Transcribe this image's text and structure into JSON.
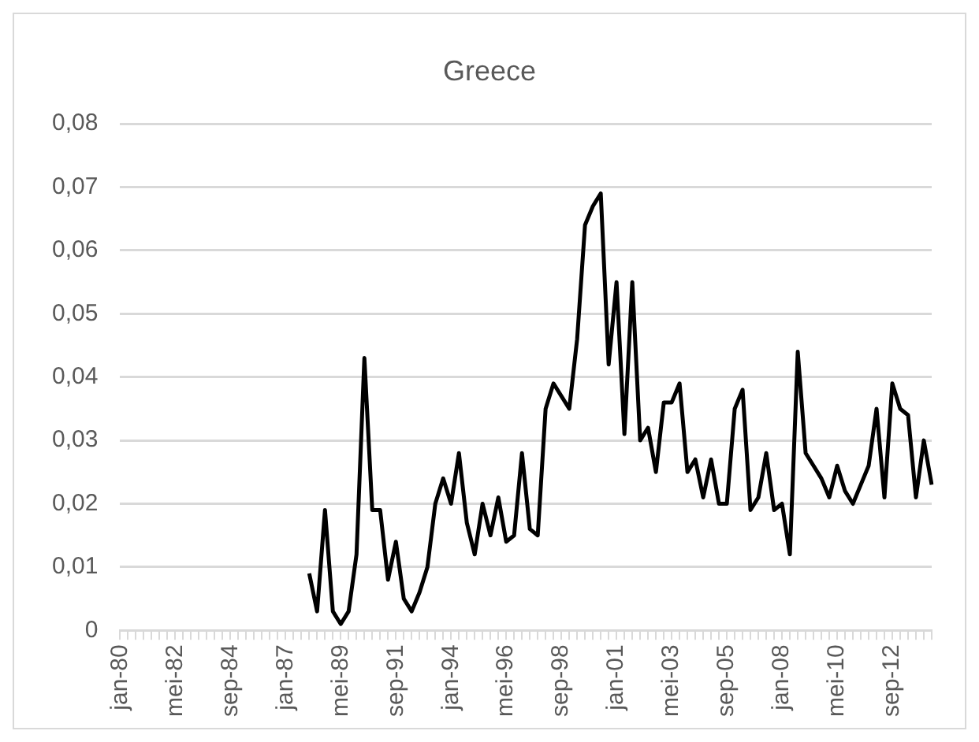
{
  "chart_data": {
    "type": "line",
    "title": "Greece",
    "categories": [
      "jan-80",
      null,
      null,
      null,
      null,
      null,
      null,
      "mei-82",
      null,
      null,
      null,
      null,
      null,
      null,
      "sep-84",
      null,
      null,
      null,
      null,
      null,
      null,
      "jan-87",
      null,
      null,
      null,
      null,
      null,
      null,
      "mei-89",
      null,
      null,
      null,
      null,
      null,
      null,
      "sep-91",
      null,
      null,
      null,
      null,
      null,
      null,
      "jan-94",
      null,
      null,
      null,
      null,
      null,
      null,
      "mei-96",
      null,
      null,
      null,
      null,
      null,
      null,
      "sep-98",
      null,
      null,
      null,
      null,
      null,
      null,
      "jan-01",
      null,
      null,
      null,
      null,
      null,
      null,
      "mei-03",
      null,
      null,
      null,
      null,
      null,
      null,
      "sep-05",
      null,
      null,
      null,
      null,
      null,
      null,
      "jan-08",
      null,
      null,
      null,
      null,
      null,
      null,
      "mei-10",
      null,
      null,
      null,
      null,
      null,
      null,
      "sep-12",
      null,
      null,
      null,
      null,
      null
    ],
    "series": [
      {
        "color": "#000000",
        "values": [
          null,
          null,
          null,
          null,
          null,
          null,
          null,
          null,
          null,
          null,
          null,
          null,
          null,
          null,
          null,
          null,
          null,
          null,
          null,
          null,
          null,
          null,
          null,
          null,
          0.009,
          0.003,
          0.019,
          0.003,
          0.001,
          0.003,
          0.012,
          0.043,
          0.019,
          0.019,
          0.008,
          0.014,
          0.005,
          0.003,
          0.006,
          0.01,
          0.02,
          0.024,
          0.02,
          0.028,
          0.017,
          0.012,
          0.02,
          0.015,
          0.021,
          0.014,
          0.015,
          0.028,
          0.016,
          0.015,
          0.035,
          0.039,
          0.037,
          0.035,
          0.046,
          0.064,
          0.067,
          0.069,
          0.042,
          0.055,
          0.031,
          0.055,
          0.03,
          0.032,
          0.025,
          0.036,
          0.036,
          0.039,
          0.025,
          0.027,
          0.021,
          0.027,
          0.02,
          0.02,
          0.035,
          0.038,
          0.019,
          0.021,
          0.028,
          0.019,
          0.02,
          0.012,
          0.044,
          0.028,
          0.026,
          0.024,
          0.021,
          0.026,
          0.022,
          0.02,
          0.023,
          0.026,
          0.035,
          0.021,
          0.039,
          0.035,
          0.034,
          0.021,
          0.03,
          0.023
        ]
      }
    ],
    "ylim": [
      0,
      0.08
    ],
    "yticks": [
      {
        "value": 0,
        "label": "0"
      },
      {
        "value": 0.01,
        "label": "0,01"
      },
      {
        "value": 0.02,
        "label": "0,02"
      },
      {
        "value": 0.03,
        "label": "0,03"
      },
      {
        "value": 0.04,
        "label": "0,04"
      },
      {
        "value": 0.05,
        "label": "0,05"
      },
      {
        "value": 0.06,
        "label": "0,06"
      },
      {
        "value": 0.07,
        "label": "0,07"
      },
      {
        "value": 0.08,
        "label": "0,08"
      }
    ],
    "grid": "y",
    "legend": false,
    "marker": "none",
    "line_style": "solid"
  }
}
